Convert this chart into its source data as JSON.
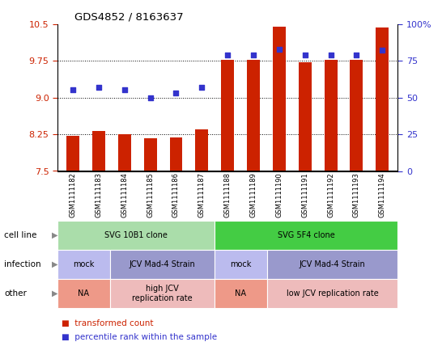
{
  "title": "GDS4852 / 8163637",
  "samples": [
    "GSM1111182",
    "GSM1111183",
    "GSM1111184",
    "GSM1111185",
    "GSM1111186",
    "GSM1111187",
    "GSM1111188",
    "GSM1111189",
    "GSM1111190",
    "GSM1111191",
    "GSM1111192",
    "GSM1111193",
    "GSM1111194"
  ],
  "bar_values": [
    8.22,
    8.32,
    8.25,
    8.17,
    8.18,
    8.35,
    9.77,
    9.77,
    10.45,
    9.72,
    9.77,
    9.77,
    10.42
  ],
  "dot_values": [
    55,
    57,
    55,
    50,
    53,
    57,
    79,
    79,
    83,
    79,
    79,
    79,
    82
  ],
  "ylim_left": [
    7.5,
    10.5
  ],
  "ylim_right": [
    0,
    100
  ],
  "yticks_left": [
    7.5,
    8.25,
    9.0,
    9.75,
    10.5
  ],
  "yticks_right": [
    0,
    25,
    50,
    75,
    100
  ],
  "bar_color": "#cc2200",
  "dot_color": "#3333cc",
  "bar_bottom": 7.5,
  "grid_values": [
    8.25,
    9.0,
    9.75
  ],
  "cell_line_row": {
    "label": "cell line",
    "groups": [
      {
        "text": "SVG 10B1 clone",
        "start": 0,
        "end": 5,
        "color": "#aaddaa"
      },
      {
        "text": "SVG 5F4 clone",
        "start": 6,
        "end": 12,
        "color": "#44cc44"
      }
    ]
  },
  "infection_row": {
    "label": "infection",
    "groups": [
      {
        "text": "mock",
        "start": 0,
        "end": 1,
        "color": "#bbbbee"
      },
      {
        "text": "JCV Mad-4 Strain",
        "start": 2,
        "end": 5,
        "color": "#9999cc"
      },
      {
        "text": "mock",
        "start": 6,
        "end": 7,
        "color": "#bbbbee"
      },
      {
        "text": "JCV Mad-4 Strain",
        "start": 8,
        "end": 12,
        "color": "#9999cc"
      }
    ]
  },
  "other_row": {
    "label": "other",
    "groups": [
      {
        "text": "NA",
        "start": 0,
        "end": 1,
        "color": "#ee9988"
      },
      {
        "text": "high JCV\nreplication rate",
        "start": 2,
        "end": 5,
        "color": "#eebbbb"
      },
      {
        "text": "NA",
        "start": 6,
        "end": 7,
        "color": "#ee9988"
      },
      {
        "text": "low JCV replication rate",
        "start": 8,
        "end": 12,
        "color": "#eebbbb"
      }
    ]
  }
}
